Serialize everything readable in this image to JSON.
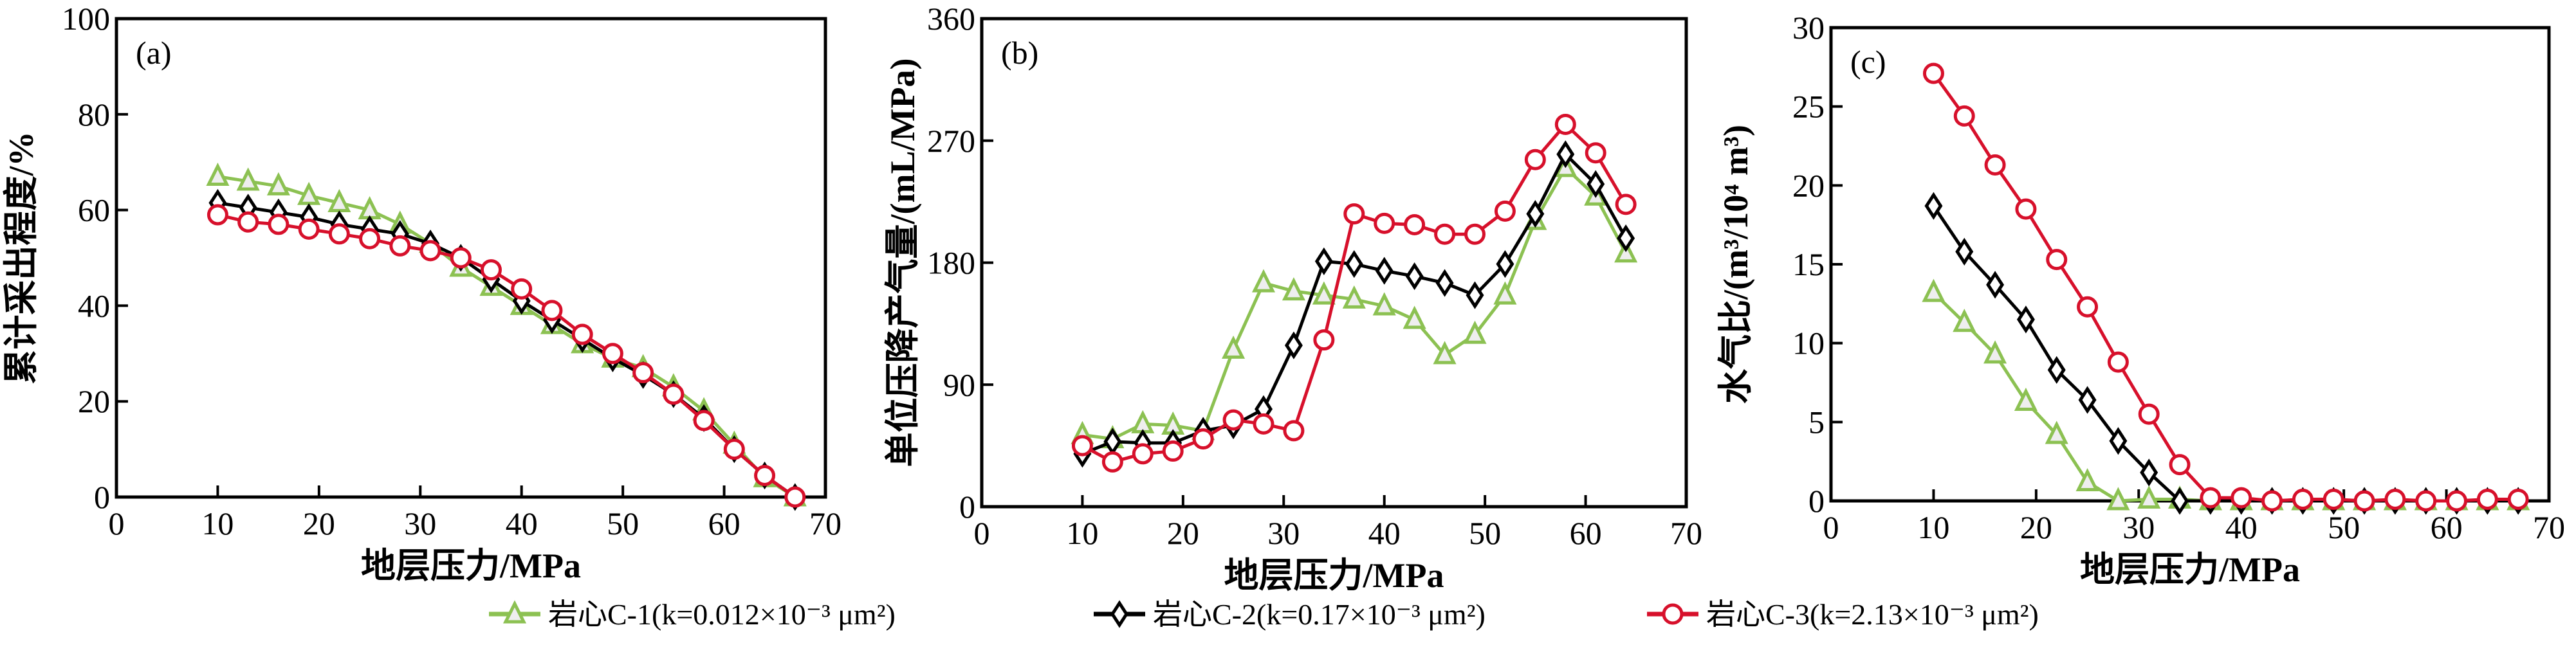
{
  "colors": {
    "C-1": "#8cc152",
    "C-2": "#000000",
    "C-3": "#d7102b"
  },
  "legend": [
    {
      "series": "C-1",
      "label": "岩心C-1(k=0.012×10⁻³ μm²)",
      "marker": "triangle"
    },
    {
      "series": "C-2",
      "label": "岩心C-2(k=0.17×10⁻³ μm²)",
      "marker": "diamond"
    },
    {
      "series": "C-3",
      "label": "岩心C-3(k=2.13×10⁻³ μm²)",
      "marker": "circle"
    }
  ],
  "chart_data": [
    {
      "type": "line",
      "panel_label": "(a)",
      "xlabel": "地层压力/MPa",
      "ylabel": "累计采出程度/%",
      "xlim": [
        0,
        70
      ],
      "ylim": [
        0,
        100
      ],
      "xticks": [
        0,
        10,
        20,
        30,
        40,
        50,
        60,
        70
      ],
      "yticks": [
        0,
        20,
        40,
        60,
        80,
        100
      ],
      "x": [
        10,
        13,
        16,
        19,
        22,
        25,
        28,
        31,
        34,
        37,
        40,
        43,
        46,
        49,
        52,
        55,
        58,
        61,
        64,
        67
      ],
      "series": [
        {
          "name": "C-1",
          "values": [
            67,
            66,
            65,
            63,
            61.5,
            60,
            57,
            53,
            48,
            44,
            40,
            36,
            32,
            29,
            27,
            23,
            18,
            11,
            4,
            0
          ]
        },
        {
          "name": "C-2",
          "values": [
            61.5,
            60.5,
            59.5,
            58.5,
            57,
            56,
            55,
            53,
            50,
            45.5,
            41,
            37,
            33,
            29,
            25.5,
            21.5,
            16.5,
            10,
            4.5,
            0
          ]
        },
        {
          "name": "C-3",
          "values": [
            59,
            57.5,
            57,
            56,
            55,
            54,
            52.5,
            51.5,
            50,
            47.5,
            43.5,
            39,
            34,
            30,
            26,
            21.5,
            16,
            10,
            4.5,
            0
          ]
        }
      ]
    },
    {
      "type": "line",
      "panel_label": "(b)",
      "xlabel": "地层压力/MPa",
      "ylabel": "单位压降产气量/(mL/MPa)",
      "xlim": [
        0,
        70
      ],
      "ylim": [
        0,
        360
      ],
      "xticks": [
        0,
        10,
        20,
        30,
        40,
        50,
        60,
        70
      ],
      "yticks": [
        0,
        90,
        180,
        270,
        360
      ],
      "x": [
        10,
        13,
        16,
        19,
        22,
        25,
        28,
        31,
        34,
        37,
        40,
        43,
        46,
        49,
        52,
        55,
        58,
        61,
        64
      ],
      "series": [
        {
          "name": "C-1",
          "values": [
            53,
            50,
            61,
            60,
            56,
            116,
            165,
            159,
            156,
            153,
            148,
            138,
            112,
            127,
            156,
            211,
            250,
            229,
            187
          ]
        },
        {
          "name": "C-2",
          "values": [
            39,
            48,
            47,
            47,
            56,
            60,
            72,
            119,
            181,
            179,
            174,
            170,
            165,
            156,
            179,
            216,
            260,
            238,
            198
          ]
        },
        {
          "name": "C-3",
          "values": [
            45,
            33,
            39,
            41,
            50,
            64,
            61,
            56,
            123,
            216,
            209,
            208,
            201,
            201,
            218,
            256,
            282,
            261,
            223
          ]
        }
      ]
    },
    {
      "type": "line",
      "panel_label": "(c)",
      "xlabel": "地层压力/MPa",
      "ylabel": "水气比/(m³/10⁴ m³)",
      "xlim": [
        0,
        70
      ],
      "ylim": [
        0,
        30
      ],
      "xticks": [
        0,
        10,
        20,
        30,
        40,
        50,
        60,
        70
      ],
      "yticks": [
        0,
        5,
        10,
        15,
        20,
        25,
        30
      ],
      "x": [
        10,
        13,
        16,
        19,
        22,
        25,
        28,
        31,
        34,
        37,
        40,
        43,
        46,
        49,
        52,
        55,
        58,
        61,
        64,
        67
      ],
      "series": [
        {
          "name": "C-1",
          "values": [
            13.2,
            11.3,
            9.3,
            6.3,
            4.2,
            1.2,
            0,
            0.1,
            0.1,
            0,
            0,
            0,
            0,
            0,
            0,
            0,
            0,
            0,
            0,
            0
          ]
        },
        {
          "name": "C-2",
          "values": [
            18.7,
            15.8,
            13.7,
            11.5,
            8.3,
            6.4,
            3.8,
            1.8,
            0,
            0,
            0,
            0,
            0,
            0,
            0,
            0,
            0,
            0,
            0,
            0
          ]
        },
        {
          "name": "C-3",
          "values": [
            27.1,
            24.4,
            21.3,
            18.5,
            15.3,
            12.3,
            8.8,
            5.5,
            2.3,
            0.2,
            0.2,
            0,
            0.1,
            0.1,
            0,
            0.1,
            0,
            0,
            0.1,
            0.1
          ]
        }
      ]
    }
  ]
}
